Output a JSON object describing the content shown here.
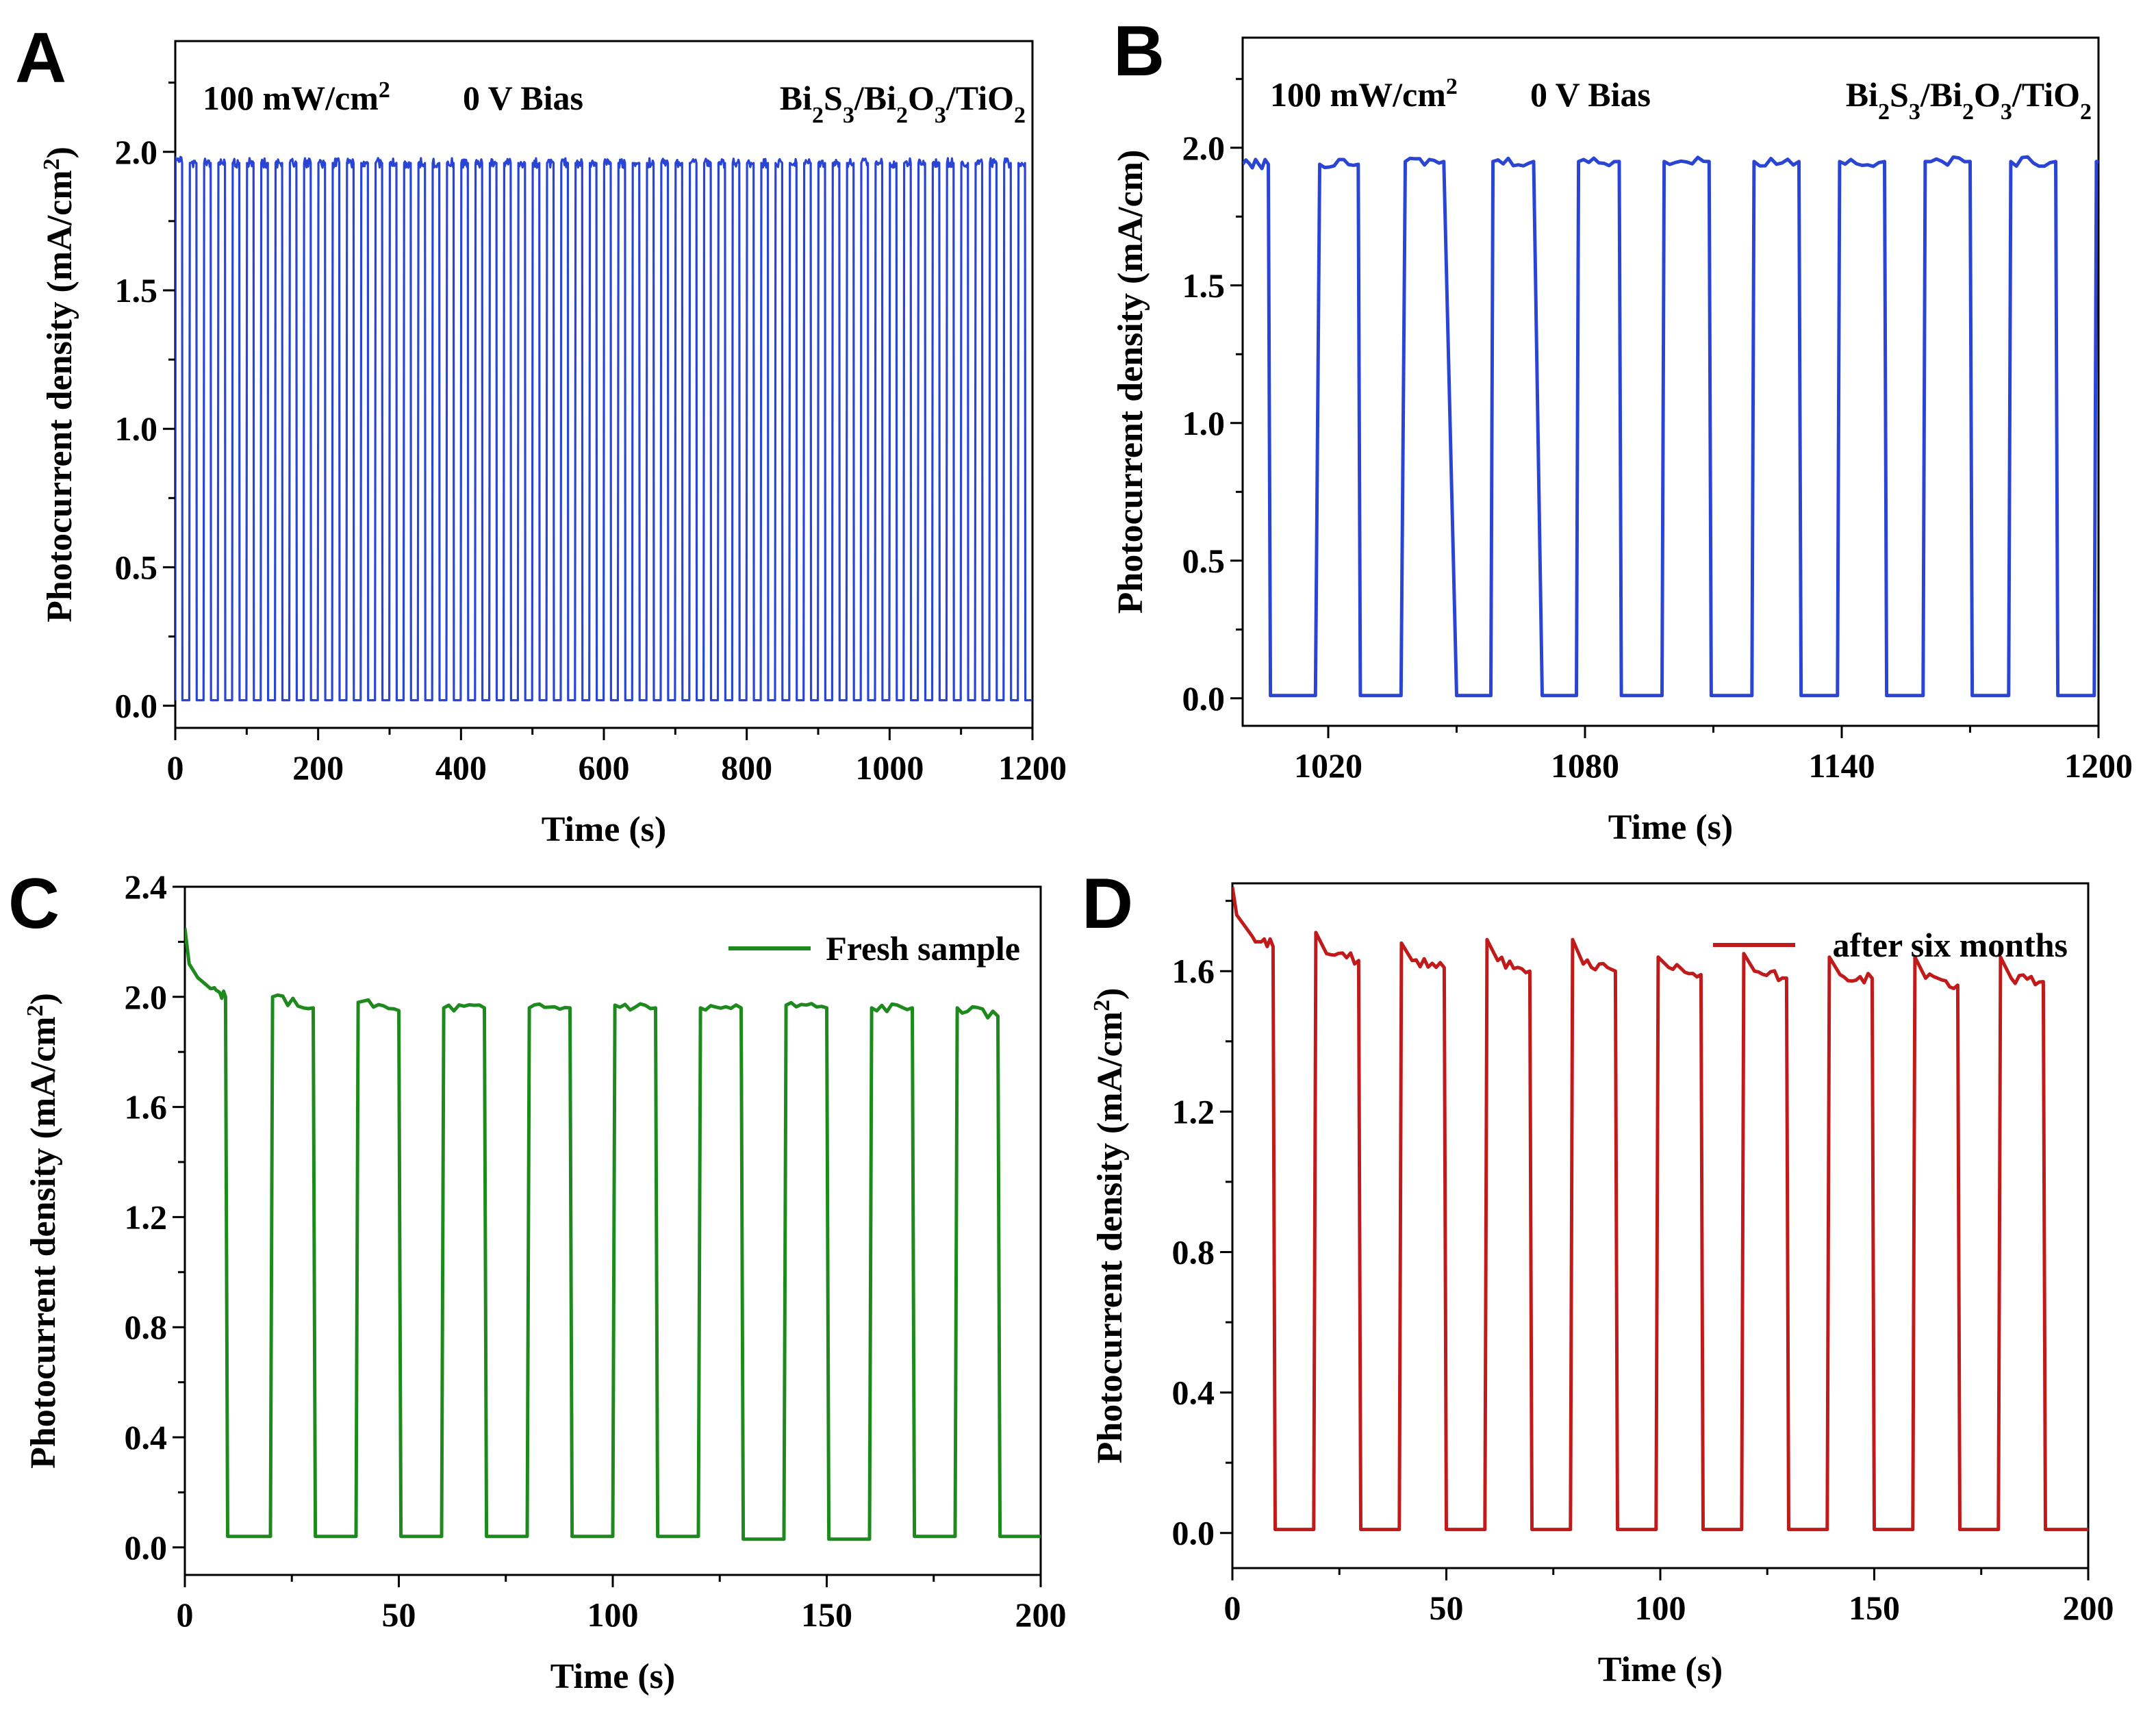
{
  "figure_title": "",
  "chart_data": [
    {
      "id": "A",
      "type": "line",
      "panel_label": "A",
      "xlabel": "Time (s)",
      "ylabel": "Photocurrent density (mA/cm²)",
      "ylabel_parts": {
        "pre": "Photocurrent density (mA/cm",
        "sup": "2",
        "post": ")"
      },
      "xlim": [
        0,
        1200
      ],
      "ylim": [
        -0.08,
        2.4
      ],
      "xticks": [
        0,
        200,
        400,
        600,
        800,
        1000,
        1200
      ],
      "yticks": [
        0.0,
        0.5,
        1.0,
        1.5,
        2.0
      ],
      "xtick_labels": [
        "0",
        "200",
        "400",
        "600",
        "800",
        "1000",
        "1200"
      ],
      "ytick_labels": [
        "0.0",
        "0.5",
        "1.0",
        "1.5",
        "2.0"
      ],
      "annotations": {
        "light": {
          "text": "100 mW/cm",
          "sup": "2"
        },
        "bias": "0 V Bias",
        "material": [
          {
            "t": "Bi",
            "sub": "2"
          },
          {
            "t": "S",
            "sub": "3"
          },
          {
            "t": "/Bi",
            "sub": "2"
          },
          {
            "t": "O",
            "sub": "3"
          },
          {
            "t": "/TiO",
            "sub": "2"
          }
        ]
      },
      "legend": null,
      "color": "#2a44d4",
      "series": [
        {
          "name": "",
          "on_off": {
            "period": 20,
            "on_fraction": 0.5,
            "t_start": 0,
            "t_end": 1200,
            "on_level": 1.96,
            "off_level": 0.02,
            "first_on_peak": 1.98
          }
        }
      ]
    },
    {
      "id": "B",
      "type": "line",
      "panel_label": "B",
      "xlabel": "Time (s)",
      "ylabel": "Photocurrent density (mA/cm)",
      "ylabel_parts": {
        "pre": "Photocurrent density (mA/cm)",
        "sup": "",
        "post": ""
      },
      "xlim": [
        1000,
        1200
      ],
      "ylim": [
        -0.1,
        2.4
      ],
      "xticks": [
        1020,
        1080,
        1140,
        1200
      ],
      "yticks": [
        0.0,
        0.5,
        1.0,
        1.5,
        2.0
      ],
      "xtick_labels": [
        "1020",
        "1080",
        "1140",
        "1200"
      ],
      "ytick_labels": [
        "0.0",
        "0.5",
        "1.0",
        "1.5",
        "2.0"
      ],
      "annotations": {
        "light": {
          "text": "100 mW/cm",
          "sup": "2"
        },
        "bias": "0 V Bias",
        "material": [
          {
            "t": "Bi",
            "sub": "2"
          },
          {
            "t": "S",
            "sub": "3"
          },
          {
            "t": "/Bi",
            "sub": "2"
          },
          {
            "t": "O",
            "sub": "3"
          },
          {
            "t": "/TiO",
            "sub": "2"
          }
        ]
      },
      "legend": null,
      "color": "#2a44d4",
      "series": [
        {
          "name": "",
          "points": [
            [
              1000,
              1.94
            ],
            [
              1006,
              1.94
            ],
            [
              1006.5,
              0.01
            ],
            [
              1017,
              0.01
            ],
            [
              1018,
              1.94
            ],
            [
              1027,
              1.94
            ],
            [
              1027.5,
              0.01
            ],
            [
              1037,
              0.01
            ],
            [
              1038,
              1.95
            ],
            [
              1047,
              1.95
            ],
            [
              1050,
              0.01
            ],
            [
              1058,
              0.01
            ],
            [
              1058.5,
              1.95
            ],
            [
              1068,
              1.95
            ],
            [
              1070,
              0.01
            ],
            [
              1078,
              0.01
            ],
            [
              1078.5,
              1.95
            ],
            [
              1088,
              1.95
            ],
            [
              1088.5,
              0.01
            ],
            [
              1098,
              0.01
            ],
            [
              1098.5,
              1.95
            ],
            [
              1109,
              1.95
            ],
            [
              1109.5,
              0.01
            ],
            [
              1119,
              0.01
            ],
            [
              1119.5,
              1.95
            ],
            [
              1130,
              1.95
            ],
            [
              1130.5,
              0.01
            ],
            [
              1139,
              0.01
            ],
            [
              1139.5,
              1.95
            ],
            [
              1150,
              1.95
            ],
            [
              1150.5,
              0.01
            ],
            [
              1159,
              0.01
            ],
            [
              1159.5,
              1.95
            ],
            [
              1170,
              1.95
            ],
            [
              1170.5,
              0.01
            ],
            [
              1179,
              0.01
            ],
            [
              1179.5,
              1.95
            ],
            [
              1190,
              1.95
            ],
            [
              1190.5,
              0.01
            ],
            [
              1199,
              0.01
            ],
            [
              1199.5,
              1.95
            ],
            [
              1200,
              1.95
            ]
          ]
        }
      ]
    },
    {
      "id": "C",
      "type": "line",
      "panel_label": "C",
      "xlabel": "Time (s)",
      "ylabel": "Photocurrent density (mA/cm²)",
      "ylabel_parts": {
        "pre": "Photocurrent density (mA/cm",
        "sup": "2",
        "post": ")"
      },
      "xlim": [
        0,
        200
      ],
      "ylim": [
        -0.1,
        2.4
      ],
      "xticks": [
        0,
        50,
        100,
        150,
        200
      ],
      "yticks": [
        0.0,
        0.4,
        0.8,
        1.2,
        1.6,
        2.0,
        2.4
      ],
      "xtick_labels": [
        "0",
        "50",
        "100",
        "150",
        "200"
      ],
      "ytick_labels": [
        "0.0",
        "0.4",
        "0.8",
        "1.2",
        "1.6",
        "2.0",
        "2.4"
      ],
      "annotations": null,
      "legend": {
        "text": "Fresh sample",
        "position": "top-right"
      },
      "color": "#1e8a1e",
      "series": [
        {
          "name": "Fresh sample",
          "points": [
            [
              0,
              2.25
            ],
            [
              1,
              2.12
            ],
            [
              3,
              2.07
            ],
            [
              6,
              2.03
            ],
            [
              9.5,
              2.0
            ],
            [
              10,
              0.04
            ],
            [
              20,
              0.04
            ],
            [
              20.5,
              2.0
            ],
            [
              30,
              1.96
            ],
            [
              30.5,
              0.04
            ],
            [
              40,
              0.04
            ],
            [
              40.5,
              1.98
            ],
            [
              50,
              1.95
            ],
            [
              50.5,
              0.04
            ],
            [
              60,
              0.04
            ],
            [
              60.5,
              1.96
            ],
            [
              70,
              1.96
            ],
            [
              70.5,
              0.04
            ],
            [
              80,
              0.04
            ],
            [
              80.5,
              1.96
            ],
            [
              90,
              1.96
            ],
            [
              90.5,
              0.04
            ],
            [
              100,
              0.04
            ],
            [
              100.5,
              1.97
            ],
            [
              110,
              1.96
            ],
            [
              110.5,
              0.04
            ],
            [
              120,
              0.04
            ],
            [
              120.5,
              1.96
            ],
            [
              130,
              1.96
            ],
            [
              130.5,
              0.03
            ],
            [
              140,
              0.03
            ],
            [
              140.5,
              1.97
            ],
            [
              150,
              1.96
            ],
            [
              150.5,
              0.03
            ],
            [
              160,
              0.03
            ],
            [
              160.5,
              1.96
            ],
            [
              170,
              1.96
            ],
            [
              170.5,
              0.04
            ],
            [
              180,
              0.04
            ],
            [
              180.5,
              1.96
            ],
            [
              190,
              1.93
            ],
            [
              190.5,
              0.04
            ],
            [
              200,
              0.04
            ]
          ]
        }
      ]
    },
    {
      "id": "D",
      "type": "line",
      "panel_label": "D",
      "xlabel": "Time (s)",
      "ylabel": "Photocurrent density (mA/cm²)",
      "ylabel_parts": {
        "pre": "Photocurrent density (mA/cm",
        "sup": "2",
        "post": ")"
      },
      "xlim": [
        0,
        200
      ],
      "ylim": [
        -0.1,
        1.85
      ],
      "xticks": [
        0,
        50,
        100,
        150,
        200
      ],
      "yticks": [
        0.0,
        0.4,
        0.8,
        1.2,
        1.6
      ],
      "xtick_labels": [
        "0",
        "50",
        "100",
        "150",
        "200"
      ],
      "ytick_labels": [
        "0.0",
        "0.4",
        "0.8",
        "1.2",
        "1.6"
      ],
      "annotations": null,
      "legend": {
        "text": "after six months",
        "position": "top-right"
      },
      "color": "#c01a1a",
      "series": [
        {
          "name": "after six months",
          "points": [
            [
              0,
              1.84
            ],
            [
              1,
              1.76
            ],
            [
              4,
              1.71
            ],
            [
              9.5,
              1.67
            ],
            [
              10,
              0.01
            ],
            [
              19,
              0.01
            ],
            [
              19.5,
              1.71
            ],
            [
              22,
              1.65
            ],
            [
              29.5,
              1.63
            ],
            [
              30,
              0.01
            ],
            [
              39,
              0.01
            ],
            [
              39.5,
              1.68
            ],
            [
              42,
              1.63
            ],
            [
              49.5,
              1.61
            ],
            [
              50,
              0.01
            ],
            [
              59,
              0.01
            ],
            [
              59.5,
              1.69
            ],
            [
              62,
              1.63
            ],
            [
              69.5,
              1.6
            ],
            [
              70,
              0.01
            ],
            [
              79,
              0.01
            ],
            [
              79.5,
              1.69
            ],
            [
              82,
              1.62
            ],
            [
              89.5,
              1.6
            ],
            [
              90,
              0.01
            ],
            [
              99,
              0.01
            ],
            [
              99.5,
              1.64
            ],
            [
              102,
              1.61
            ],
            [
              109.5,
              1.59
            ],
            [
              110,
              0.01
            ],
            [
              119,
              0.01
            ],
            [
              119.5,
              1.65
            ],
            [
              122,
              1.6
            ],
            [
              129.5,
              1.58
            ],
            [
              130,
              0.01
            ],
            [
              139,
              0.01
            ],
            [
              139.5,
              1.64
            ],
            [
              142,
              1.59
            ],
            [
              149.5,
              1.58
            ],
            [
              150,
              0.01
            ],
            [
              159,
              0.01
            ],
            [
              159.5,
              1.64
            ],
            [
              162,
              1.58
            ],
            [
              169.5,
              1.56
            ],
            [
              170,
              0.01
            ],
            [
              179,
              0.01
            ],
            [
              179.5,
              1.64
            ],
            [
              182,
              1.58
            ],
            [
              189.5,
              1.57
            ],
            [
              190,
              0.01
            ],
            [
              200,
              0.01
            ]
          ]
        }
      ]
    }
  ]
}
